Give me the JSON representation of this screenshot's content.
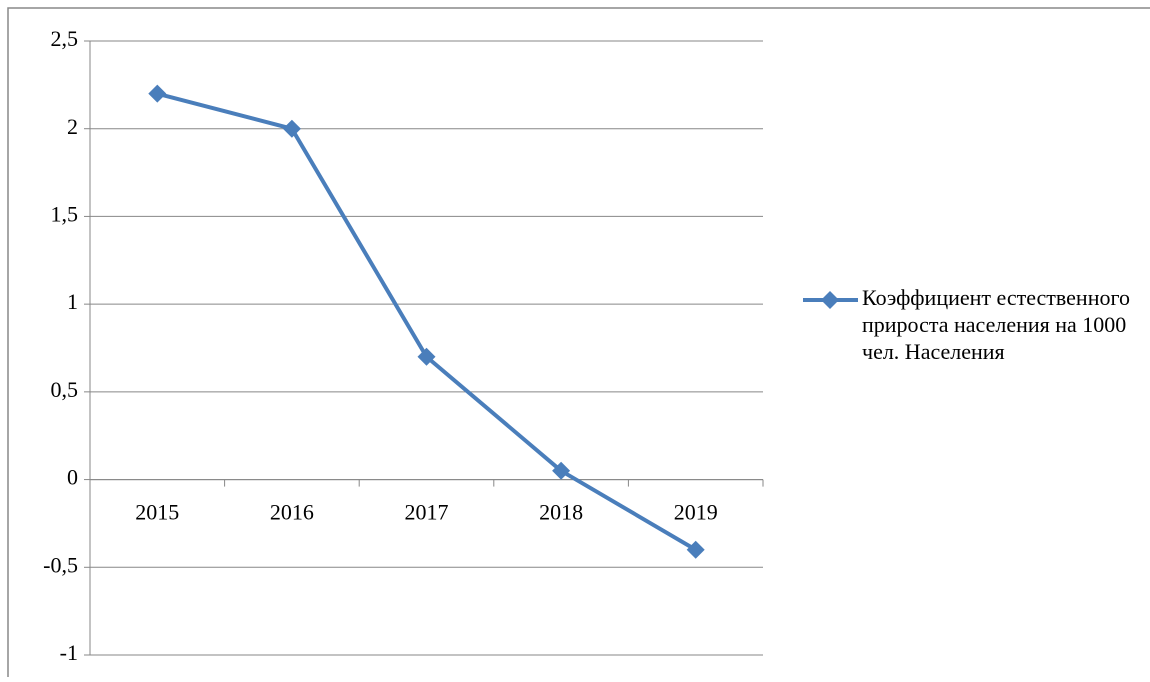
{
  "chart_data": {
    "type": "line",
    "categories": [
      "2015",
      "2016",
      "2017",
      "2018",
      "2019"
    ],
    "series": [
      {
        "name": "Коэффициент естественного прироста населения на 1000 чел. Населения",
        "color": "#4a7ebb",
        "values": [
          2.2,
          2.0,
          0.7,
          0.05,
          -0.4
        ]
      }
    ],
    "ylim": [
      -1,
      2.5
    ],
    "yticks": [
      -1,
      {
        "value": -0.5,
        "label": "-0,5"
      },
      0,
      {
        "value": 0.5,
        "label": "0,5"
      },
      1,
      {
        "value": 1.5,
        "label": "1,5"
      },
      2,
      {
        "value": 2.5,
        "label": "2,5"
      }
    ],
    "grid": true,
    "legend": "right"
  }
}
